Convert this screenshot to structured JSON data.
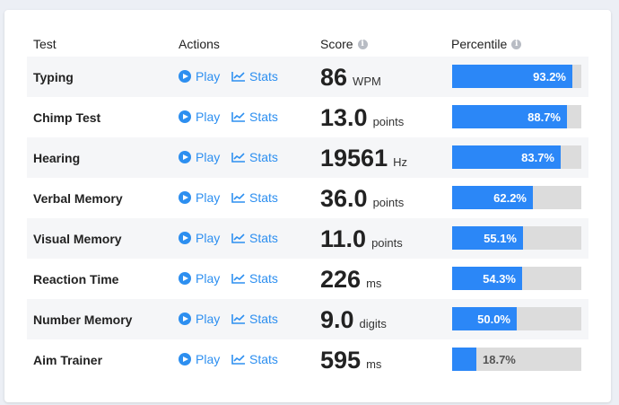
{
  "header": {
    "test": "Test",
    "actions": "Actions",
    "score": "Score",
    "percentile": "Percentile",
    "info_icon": "info-icon"
  },
  "actions": {
    "play_label": "Play",
    "stats_label": "Stats"
  },
  "colors": {
    "accent": "#2d8ff0",
    "bar_fill": "#2b87f7",
    "bar_track": "#dcdcdc"
  },
  "rows": [
    {
      "name": "Typing",
      "score": "86",
      "unit": "WPM",
      "percentile": 93.2,
      "percentile_label": "93.2%"
    },
    {
      "name": "Chimp Test",
      "score": "13.0",
      "unit": "points",
      "percentile": 88.7,
      "percentile_label": "88.7%"
    },
    {
      "name": "Hearing",
      "score": "19561",
      "unit": "Hz",
      "percentile": 83.7,
      "percentile_label": "83.7%"
    },
    {
      "name": "Verbal Memory",
      "score": "36.0",
      "unit": "points",
      "percentile": 62.2,
      "percentile_label": "62.2%"
    },
    {
      "name": "Visual Memory",
      "score": "11.0",
      "unit": "points",
      "percentile": 55.1,
      "percentile_label": "55.1%"
    },
    {
      "name": "Reaction Time",
      "score": "226",
      "unit": "ms",
      "percentile": 54.3,
      "percentile_label": "54.3%"
    },
    {
      "name": "Number Memory",
      "score": "9.0",
      "unit": "digits",
      "percentile": 50.0,
      "percentile_label": "50.0%"
    },
    {
      "name": "Aim Trainer",
      "score": "595",
      "unit": "ms",
      "percentile": 18.7,
      "percentile_label": "18.7%"
    }
  ]
}
